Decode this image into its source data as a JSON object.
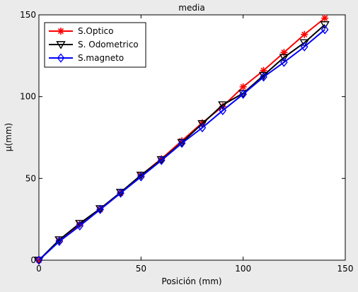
{
  "chart_data": {
    "type": "line",
    "title": "media",
    "xlabel": "Posición (mm)",
    "ylabel": "µ(mm)",
    "xlim": [
      0,
      150
    ],
    "ylim": [
      0,
      150
    ],
    "x_ticks": [
      0,
      50,
      100,
      150
    ],
    "y_ticks": [
      0,
      50,
      100,
      150
    ],
    "grid": false,
    "legend_position": "top-left",
    "x": [
      0,
      10,
      20,
      30,
      40,
      50,
      60,
      70,
      80,
      90,
      100,
      110,
      120,
      130,
      140
    ],
    "series": [
      {
        "name": "S.Optico",
        "color": "#ff0000",
        "marker": "asterisk",
        "values": [
          0,
          12,
          22,
          31,
          41,
          52,
          62,
          73,
          84,
          94,
          106,
          116,
          127,
          138,
          148
        ]
      },
      {
        "name": "S. Odometrico",
        "color": "#000000",
        "marker": "triangle-down",
        "values": [
          0,
          12.5,
          22.5,
          31.5,
          41.5,
          52,
          61.5,
          72,
          83.5,
          95,
          102,
          113,
          124,
          133,
          144
        ]
      },
      {
        "name": "S.magneto",
        "color": "#0000ff",
        "marker": "diamond",
        "values": [
          0,
          11.5,
          21,
          31,
          41,
          51,
          61,
          71.5,
          81,
          91.5,
          101.5,
          112,
          121,
          130.5,
          141
        ]
      }
    ]
  }
}
